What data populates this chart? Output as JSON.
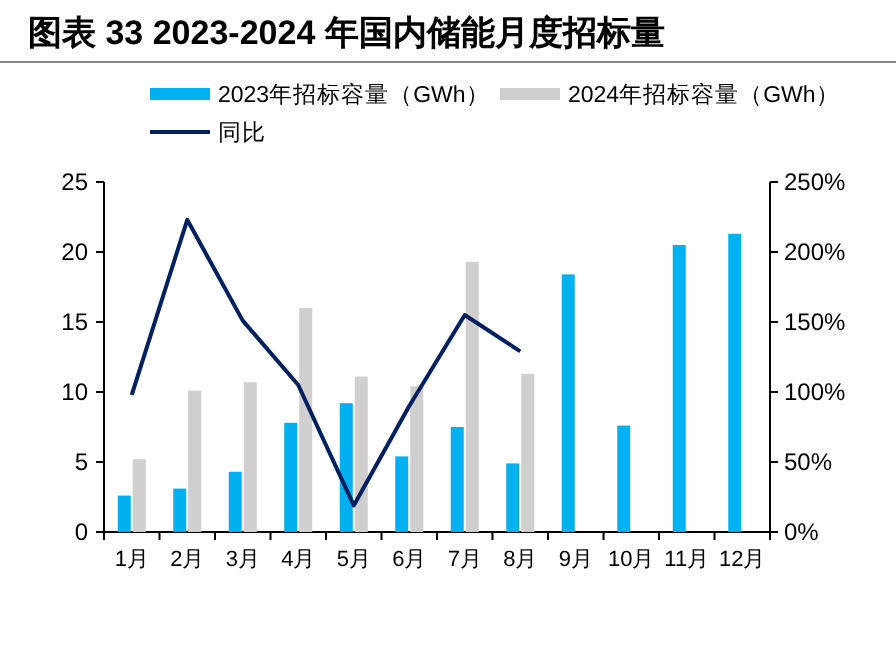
{
  "chart_data": {
    "type": "bar",
    "title": "图表 33 2023-2024 年国内储能月度招标量",
    "categories": [
      "1月",
      "2月",
      "3月",
      "4月",
      "5月",
      "6月",
      "7月",
      "8月",
      "9月",
      "10月",
      "11月",
      "12月"
    ],
    "series": [
      {
        "name": "2023年招标容量（GWh）",
        "color": "#00b0f0",
        "values": [
          2.6,
          3.1,
          4.3,
          7.8,
          9.2,
          5.4,
          7.5,
          4.9,
          18.4,
          7.6,
          20.5,
          21.3
        ]
      },
      {
        "name": "2024年招标容量（GWh）",
        "color": "#d0cece",
        "values": [
          5.2,
          10.1,
          10.7,
          16.0,
          11.1,
          10.4,
          19.3,
          11.3,
          null,
          null,
          null,
          null
        ]
      },
      {
        "name": "同比",
        "type": "line",
        "axis": "y2",
        "color": "#002060",
        "values": [
          98,
          223,
          151,
          105,
          19,
          90,
          155,
          129,
          null,
          null,
          null,
          null
        ]
      }
    ],
    "ylim": [
      0,
      25
    ],
    "yticks": [
      0,
      5,
      10,
      15,
      20,
      25
    ],
    "y2lim": [
      0,
      250
    ],
    "y2ticks": [
      {
        "value": 0,
        "label": "0%"
      },
      {
        "value": 50,
        "label": "50%"
      },
      {
        "value": 100,
        "label": "100%"
      },
      {
        "value": 150,
        "label": "150%"
      },
      {
        "value": 200,
        "label": "200%"
      },
      {
        "value": 250,
        "label": "250%"
      }
    ],
    "legend": "top",
    "grid": false
  }
}
